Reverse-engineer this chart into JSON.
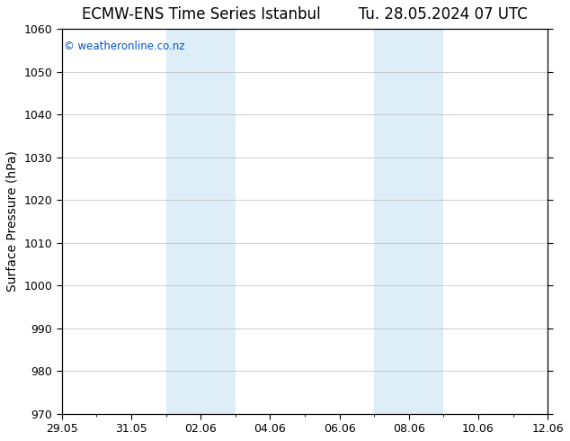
{
  "title": "ECMW-ENS Time Series Istanbul",
  "title2": "Tu. 28.05.2024 07 UTC",
  "ylabel": "Surface Pressure (hPa)",
  "ylim": [
    970,
    1060
  ],
  "yticks": [
    970,
    980,
    990,
    1000,
    1010,
    1020,
    1030,
    1040,
    1050,
    1060
  ],
  "x_labels": [
    "29.05",
    "31.05",
    "02.06",
    "04.06",
    "06.06",
    "08.06",
    "10.06",
    "12.06"
  ],
  "x_label_days": [
    0,
    2,
    4,
    6,
    8,
    10,
    12,
    14
  ],
  "shaded_bands": [
    {
      "start_day": 3.0,
      "end_day": 5.0
    },
    {
      "start_day": 9.0,
      "end_day": 11.0
    }
  ],
  "band_color": "#ddeef8",
  "background_color": "#ffffff",
  "plot_bg_color": "#ffffff",
  "watermark": "© weatheronline.co.nz",
  "watermark_color": "#0055cc",
  "grid_color": "#bbbbbb",
  "title_fontsize": 12,
  "tick_fontsize": 9,
  "ylabel_fontsize": 10,
  "title_gap_spaces": "        "
}
